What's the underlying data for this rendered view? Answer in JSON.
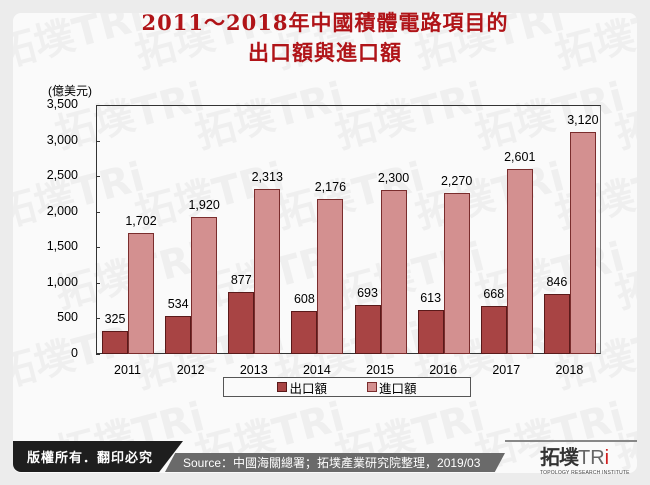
{
  "title": {
    "line1": "2011～2018年中國積體電路項目的",
    "line2": "出口額與進口額"
  },
  "watermark": {
    "text": "拓墣TRi",
    "subtext": "TOPOLOGY RESEARCH INSTITUTE"
  },
  "footer": {
    "copyright": "版權所有．翻印必究",
    "source": "Source：中國海關總署；拓墣產業研究院整理，2019/03",
    "logo_cn": "拓墣",
    "logo_en": "TRi",
    "logo_sub": "TOPOLOGY RESEARCH INSTITUTE"
  },
  "colors": {
    "title": "#b01418",
    "export_bar": "#a84444",
    "import_bar": "#d39090"
  },
  "chart_data": {
    "type": "bar",
    "title": "2011～2018年中國積體電路項目的出口額與進口額",
    "unit_label": "(億美元)",
    "xlabel": "",
    "ylabel": "(億美元)",
    "ylim": [
      0,
      3500
    ],
    "yticks": [
      "0",
      "500",
      "1,000",
      "1,500",
      "2,000",
      "2,500",
      "3,000",
      "3,500"
    ],
    "categories": [
      "2011",
      "2012",
      "2013",
      "2014",
      "2015",
      "2016",
      "2017",
      "2018"
    ],
    "series": [
      {
        "name": "出口額",
        "values": [
          325,
          534,
          877,
          608,
          693,
          613,
          668,
          846
        ],
        "labels": [
          "325",
          "534",
          "877",
          "608",
          "693",
          "613",
          "668",
          "846"
        ]
      },
      {
        "name": "進口額",
        "values": [
          1702,
          1920,
          2313,
          2176,
          2300,
          2270,
          2601,
          3120
        ],
        "labels": [
          "1,702",
          "1,920",
          "2,313",
          "2,176",
          "2,300",
          "2,270",
          "2,601",
          "3,120"
        ]
      }
    ],
    "legend_position": "bottom",
    "grid": false
  }
}
